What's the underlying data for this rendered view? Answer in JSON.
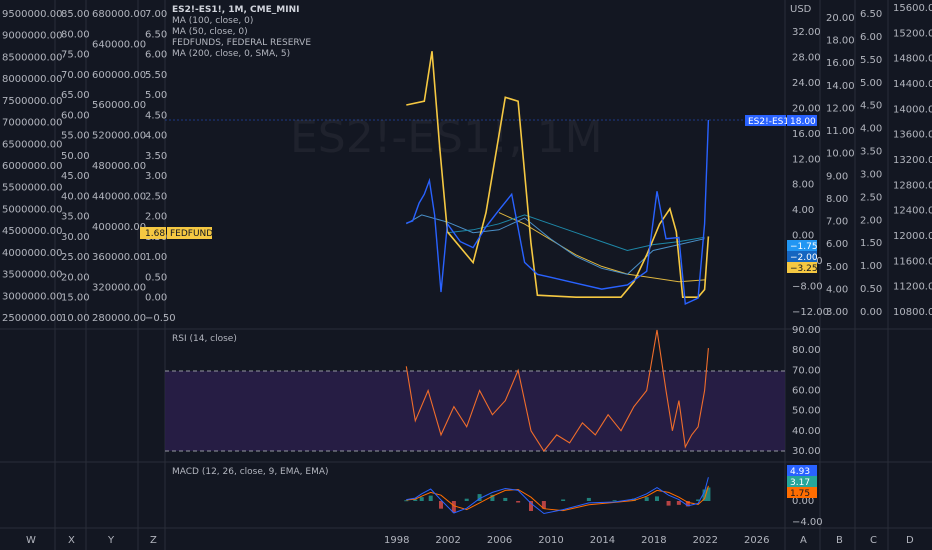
{
  "symbol_title": "ES2!-ES1!, 1M, CME_MINI",
  "watermark": "ES2!-ES1!, 1M",
  "currency": "USD",
  "legend_main": [
    "MA (100, close, 0)",
    "MA (50, close, 0)",
    "FEDFUNDS, FEDERAL RESERVE",
    "MA (200, close, 0, SMA, 5)"
  ],
  "rsi_legend": "RSI (14, close)",
  "macd_legend": "MACD (12, 26, close, 9, EMA, EMA)",
  "left_axes": [
    [
      "9500000.00",
      "9000000.00",
      "8500000.00",
      "8000000.00",
      "7500000.00",
      "7000000.00",
      "6500000.00",
      "6000000.00",
      "5500000.00",
      "5000000.00",
      "4500000.00",
      "4000000.00",
      "3500000.00",
      "3000000.00",
      "2500000.00"
    ],
    [
      "85.00",
      "80.00",
      "75.00",
      "70.00",
      "65.00",
      "60.00",
      "55.00",
      "50.00",
      "45.00",
      "40.00",
      "35.00",
      "30.00",
      "25.00",
      "20.00",
      "15.00",
      "10.00"
    ],
    [
      "680000.00",
      "640000.00",
      "600000.00",
      "560000.00",
      "520000.00",
      "480000.00",
      "440000.00",
      "400000.00",
      "360000.00",
      "320000.00",
      "280000.00"
    ],
    [
      "7.00",
      "6.50",
      "6.00",
      "5.50",
      "5.00",
      "4.50",
      "4.00",
      "3.50",
      "3.00",
      "2.50",
      "2.00",
      "1.50",
      "1.00",
      "0.50",
      "0.00",
      "−0.50"
    ]
  ],
  "right_axes": [
    [
      "32.00",
      "28.00",
      "24.00",
      "20.00",
      "16.00",
      "12.00",
      "8.00",
      "4.00",
      "0.00",
      "−4.00",
      "−8.00",
      "−12.00"
    ],
    [
      "20.00",
      "18.00",
      "16.00",
      "14.00",
      "12.00",
      "11.00",
      "10.00",
      "9.00",
      "8.00",
      "7.00",
      "6.00",
      "5.00",
      "4.00",
      "3.00"
    ],
    [
      "6.50",
      "6.00",
      "5.50",
      "5.00",
      "4.50",
      "4.00",
      "3.50",
      "3.00",
      "2.50",
      "2.00",
      "1.50",
      "1.00",
      "0.50",
      "0.00"
    ],
    [
      "15600.00",
      "15200.00",
      "14800.00",
      "14400.00",
      "14000.00",
      "13600.00",
      "13200.00",
      "12800.00",
      "12400.00",
      "12000.00",
      "11600.00",
      "11200.00",
      "10800.00"
    ]
  ],
  "rsi_axis": [
    "90.00",
    "80.00",
    "70.00",
    "60.00",
    "50.00",
    "40.00",
    "30.00"
  ],
  "macd_axis": [
    "4.00",
    "0.00",
    "−4.00"
  ],
  "badges": {
    "fedfunds_value": "1.68",
    "fedfunds_label": "FEDFUNDS",
    "es_label": "ES2!-ES1!",
    "es_value": "18.00",
    "ma_a": "−1.75",
    "ma_b": "−2.00",
    "ma_c": "−3.25",
    "macd_a": "4.93",
    "macd_b": "3.17",
    "macd_c": "1.75"
  },
  "time_axis": [
    "1998",
    "2002",
    "2006",
    "2010",
    "2014",
    "2018",
    "2022",
    "2026"
  ],
  "bottom_letters_left": [
    "W",
    "X",
    "Y",
    "Z"
  ],
  "bottom_letters_right": [
    "A",
    "B",
    "C",
    "D"
  ],
  "colors": {
    "bg": "#131722",
    "price": "#2962ff",
    "fedfunds": "#f5c842",
    "ma_light": "#4a90c8",
    "ma_teal": "#1e88a8",
    "rsi": "#f06d2b",
    "rsi_band": "#2a1e4a",
    "macd_line": "#2962ff",
    "signal_line": "#ff6d00"
  },
  "chart_data": {
    "type": "line",
    "x_range": [
      1998,
      2026
    ],
    "series": [
      {
        "x": [
          1998.8,
          1999.3,
          1999.8,
          2000.2,
          2000.6,
          2001.0,
          2001.5,
          2002.0,
          2003.0,
          2004.0,
          2005.0,
          2006.0,
          2007.0,
          2008.0,
          2009.0,
          2010.0,
          2012.0,
          2014.0,
          2016.0,
          2017.5,
          2018.3,
          2019.0,
          2020.0,
          2020.5,
          2021.0,
          2021.5,
          2022.0,
          2022.3
        ],
        "y": [
          0.6,
          1.0,
          4.0,
          5.5,
          7.8,
          2.0,
          -11.0,
          0.5,
          -2.5,
          -3.5,
          0.0,
          2.8,
          5.5,
          -6.0,
          -8.0,
          -8.5,
          -9.5,
          -10.5,
          -9.8,
          -7.5,
          6.0,
          -2.0,
          -1.8,
          -13.0,
          -12.5,
          -12.0,
          0.5,
          18.0
        ]
      },
      {
        "x": [
          1998.8,
          2000.2,
          2000.8,
          2001.4,
          2002.0,
          2004.0,
          2005.0,
          2006.5,
          2007.5,
          2008.5,
          2009.0,
          2012.0,
          2015.5,
          2016.5,
          2017.5,
          2018.5,
          2019.3,
          2019.8,
          2020.3,
          2021.5,
          2022.0,
          2022.3
        ],
        "y": [
          5.1,
          5.2,
          6.5,
          4.0,
          1.8,
          1.0,
          2.3,
          5.3,
          5.2,
          1.5,
          0.15,
          0.1,
          0.1,
          0.5,
          1.2,
          2.0,
          2.4,
          1.8,
          0.1,
          0.1,
          0.3,
          1.68
        ]
      },
      {
        "x": [
          1998.8,
          2000.0,
          2002.0,
          2004.0,
          2006.0,
          2008.0,
          2010.0,
          2012.0,
          2014.0,
          2016.0,
          2018.0,
          2020.0,
          2022.0
        ],
        "y": [
          0.5,
          2.0,
          0.8,
          -1.0,
          -0.5,
          1.5,
          -2.0,
          -5.0,
          -7.0,
          -8.0,
          -4.0,
          -3.0,
          -2.0
        ]
      },
      {
        "x": [
          2002.0,
          2004.0,
          2006.0,
          2008.0,
          2010.0,
          2012.0,
          2014.0,
          2016.0,
          2018.0,
          2020.0,
          2022.0
        ],
        "y": [
          -1.0,
          -0.5,
          0.5,
          2.0,
          0.5,
          -1.0,
          -2.5,
          -4.0,
          -3.0,
          -2.5,
          -1.75
        ]
      },
      {
        "x": [
          2006.0,
          2008.0,
          2010.0,
          2012.0,
          2014.0,
          2016.0,
          2018.0,
          2020.0,
          2022.0
        ],
        "y": [
          2.3,
          2.0,
          1.6,
          1.2,
          0.9,
          0.7,
          0.6,
          0.5,
          0.55
        ]
      }
    ],
    "rsi": {
      "x": [
        1998.8,
        1999.5,
        2000.5,
        2001.5,
        2002.5,
        2003.5,
        2004.5,
        2005.5,
        2006.5,
        2007.5,
        2008.5,
        2009.5,
        2010.5,
        2011.5,
        2012.5,
        2013.5,
        2014.5,
        2015.5,
        2016.5,
        2017.5,
        2018.3,
        2019.0,
        2019.5,
        2020.0,
        2020.5,
        2021.0,
        2021.5,
        2022.0,
        2022.3
      ],
      "y": [
        72,
        45,
        60,
        38,
        52,
        42,
        60,
        48,
        55,
        70,
        40,
        30,
        38,
        34,
        44,
        38,
        48,
        40,
        52,
        60,
        90,
        60,
        40,
        55,
        32,
        38,
        42,
        60,
        81
      ],
      "upper": 70,
      "lower": 30,
      "ylim": [
        25,
        92
      ]
    },
    "macd": {
      "x": [
        1998.8,
        1999.5,
        2000.0,
        2000.7,
        2001.5,
        2002.5,
        2003.5,
        2004.5,
        2005.5,
        2006.5,
        2007.5,
        2008.5,
        2009.5,
        2011.0,
        2013.0,
        2015.0,
        2016.5,
        2017.5,
        2018.3,
        2019.2,
        2020.0,
        2020.7,
        2021.5,
        2022.0,
        2022.3
      ],
      "macd": [
        0.3,
        0.6,
        1.5,
        2.5,
        0.2,
        -2.5,
        -1.5,
        0.5,
        1.8,
        2.6,
        2.2,
        -0.5,
        -2.6,
        -1.8,
        -0.4,
        -0.2,
        0.4,
        1.5,
        2.8,
        1.2,
        0.3,
        -1.0,
        -0.5,
        2.0,
        4.93
      ],
      "signal": [
        0.2,
        0.4,
        1.0,
        1.8,
        1.2,
        -1.0,
        -1.8,
        -0.4,
        1.0,
        2.2,
        2.4,
        0.8,
        -1.6,
        -2.0,
        -0.8,
        -0.3,
        0.1,
        1.0,
        2.2,
        1.8,
        0.8,
        -0.3,
        -0.7,
        0.5,
        3.17
      ],
      "ylim": [
        -5,
        5.5
      ]
    }
  }
}
